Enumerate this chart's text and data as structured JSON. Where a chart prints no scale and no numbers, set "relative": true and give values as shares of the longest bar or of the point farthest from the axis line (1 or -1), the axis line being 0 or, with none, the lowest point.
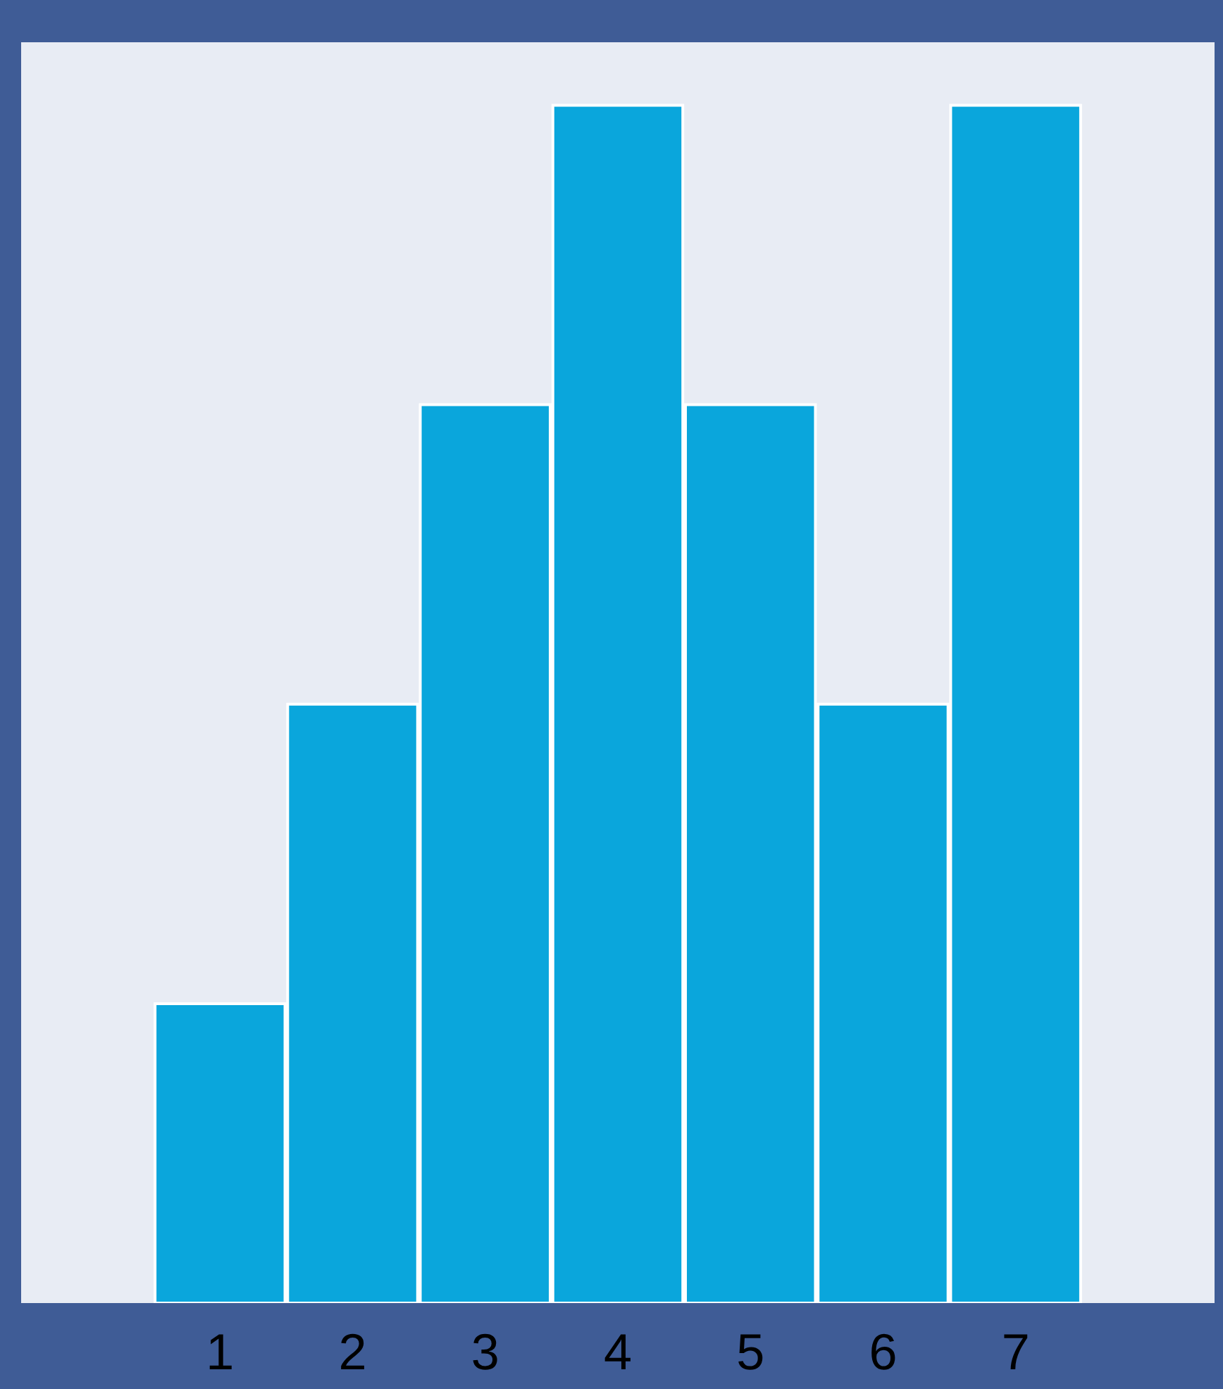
{
  "chart_data": {
    "type": "bar",
    "relative": true,
    "categories": [
      null,
      "1",
      "2",
      "3",
      "4",
      "5",
      "6",
      "7",
      null
    ],
    "values": [
      null,
      0.25,
      0.5,
      0.75,
      1,
      0.75,
      0.5,
      1,
      null
    ],
    "color": "#0aa6dc",
    "grid": false
  }
}
